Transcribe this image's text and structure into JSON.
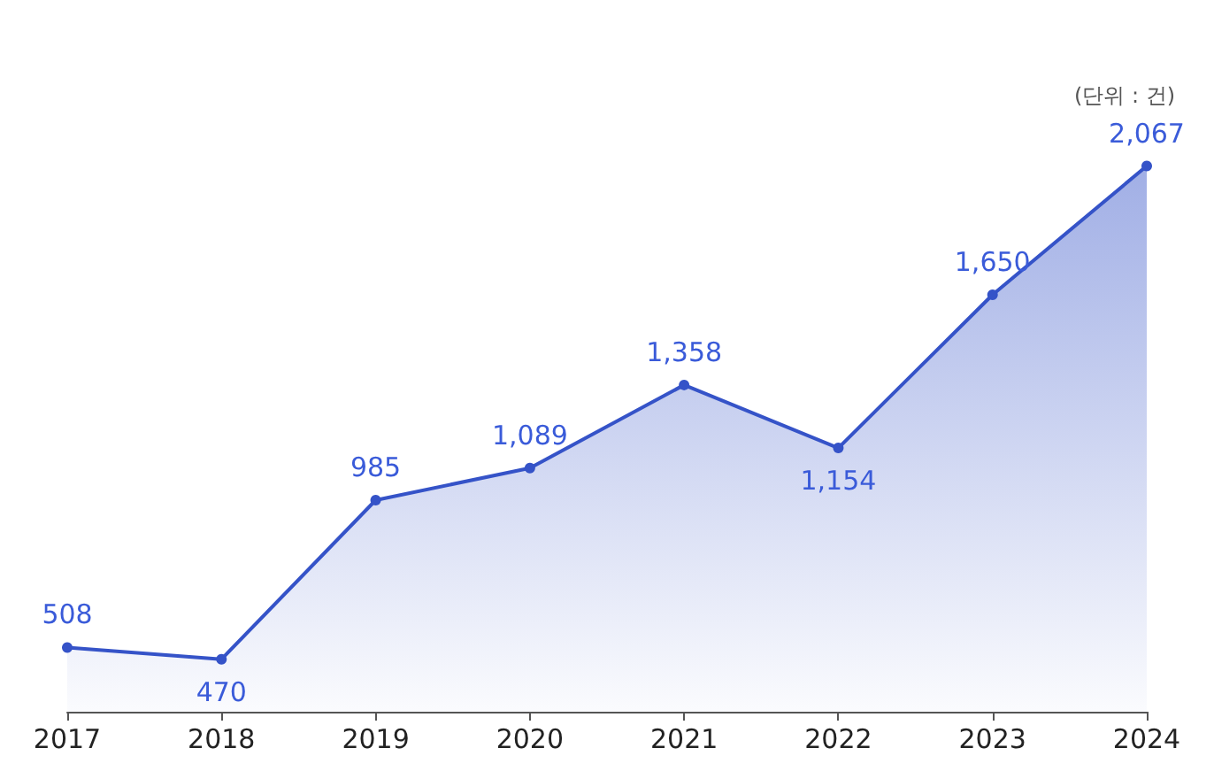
{
  "chart_data": {
    "type": "area",
    "categories": [
      "2017",
      "2018",
      "2019",
      "2020",
      "2021",
      "2022",
      "2023",
      "2024"
    ],
    "series": [
      {
        "color": "#3553c8",
        "values": [
          508,
          470,
          985,
          1089,
          1358,
          1154,
          1650,
          2067
        ],
        "value_labels": [
          "508",
          "470",
          "985",
          "1,089",
          "1,358",
          "1,154",
          "1,650",
          "2,067"
        ]
      }
    ],
    "marker": "circle",
    "annotations": [
      "(단위 : 건)"
    ]
  }
}
